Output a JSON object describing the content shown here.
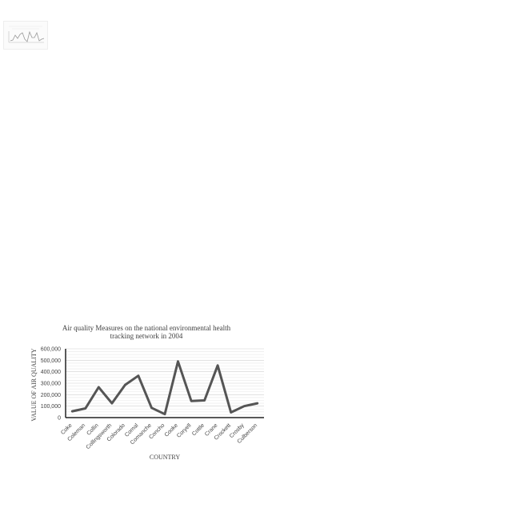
{
  "chart_data": {
    "type": "line",
    "title": "Air quality Measures on the national environmental health tracking network in 2004",
    "title_lines": [
      "Air quality Measures on the national environmental health",
      "tracking network in 2004"
    ],
    "xlabel": "COUNTRY",
    "ylabel": "VALUE OF AIR QUALITY",
    "ylim": [
      0,
      600000
    ],
    "yticks": [
      "0",
      "100,000",
      "200,000",
      "300,000",
      "400,000",
      "500,000",
      "600,000"
    ],
    "grid": true,
    "legend": "none",
    "categories": [
      "Coke",
      "Coleman",
      "Collin",
      "Collingsworth",
      "Colorado",
      "Comal",
      "Comanche",
      "Concho",
      "Cooke",
      "Coryell",
      "Cottle",
      "Crane",
      "Crockett",
      "Crosby",
      "Culberson"
    ],
    "series": [
      {
        "values": [
          55000,
          80000,
          265000,
          125000,
          285000,
          365000,
          85000,
          30000,
          490000,
          145000,
          150000,
          455000,
          45000,
          100000,
          125000
        ],
        "color": "#555555"
      }
    ]
  }
}
